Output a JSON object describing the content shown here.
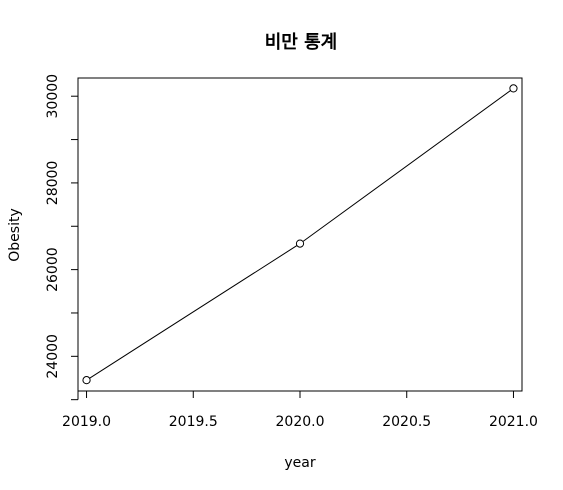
{
  "chart_data": {
    "type": "line",
    "title": "비만 통계",
    "xlabel": "year",
    "ylabel": "Obesity",
    "x": [
      2019,
      2020,
      2021
    ],
    "series": [
      {
        "values": [
          23450,
          26600,
          30180
        ]
      }
    ],
    "xlim": [
      2018.96,
      2021.04
    ],
    "ylim": [
      23200,
      30420
    ],
    "xticks": [
      "2019.0",
      "2019.5",
      "2020.0",
      "2020.5",
      "2021.0"
    ],
    "yticks": [
      "24000",
      "26000",
      "28000",
      "30000"
    ],
    "grid": false,
    "legend": "none",
    "markers": "open-circle",
    "color": "#000000"
  }
}
